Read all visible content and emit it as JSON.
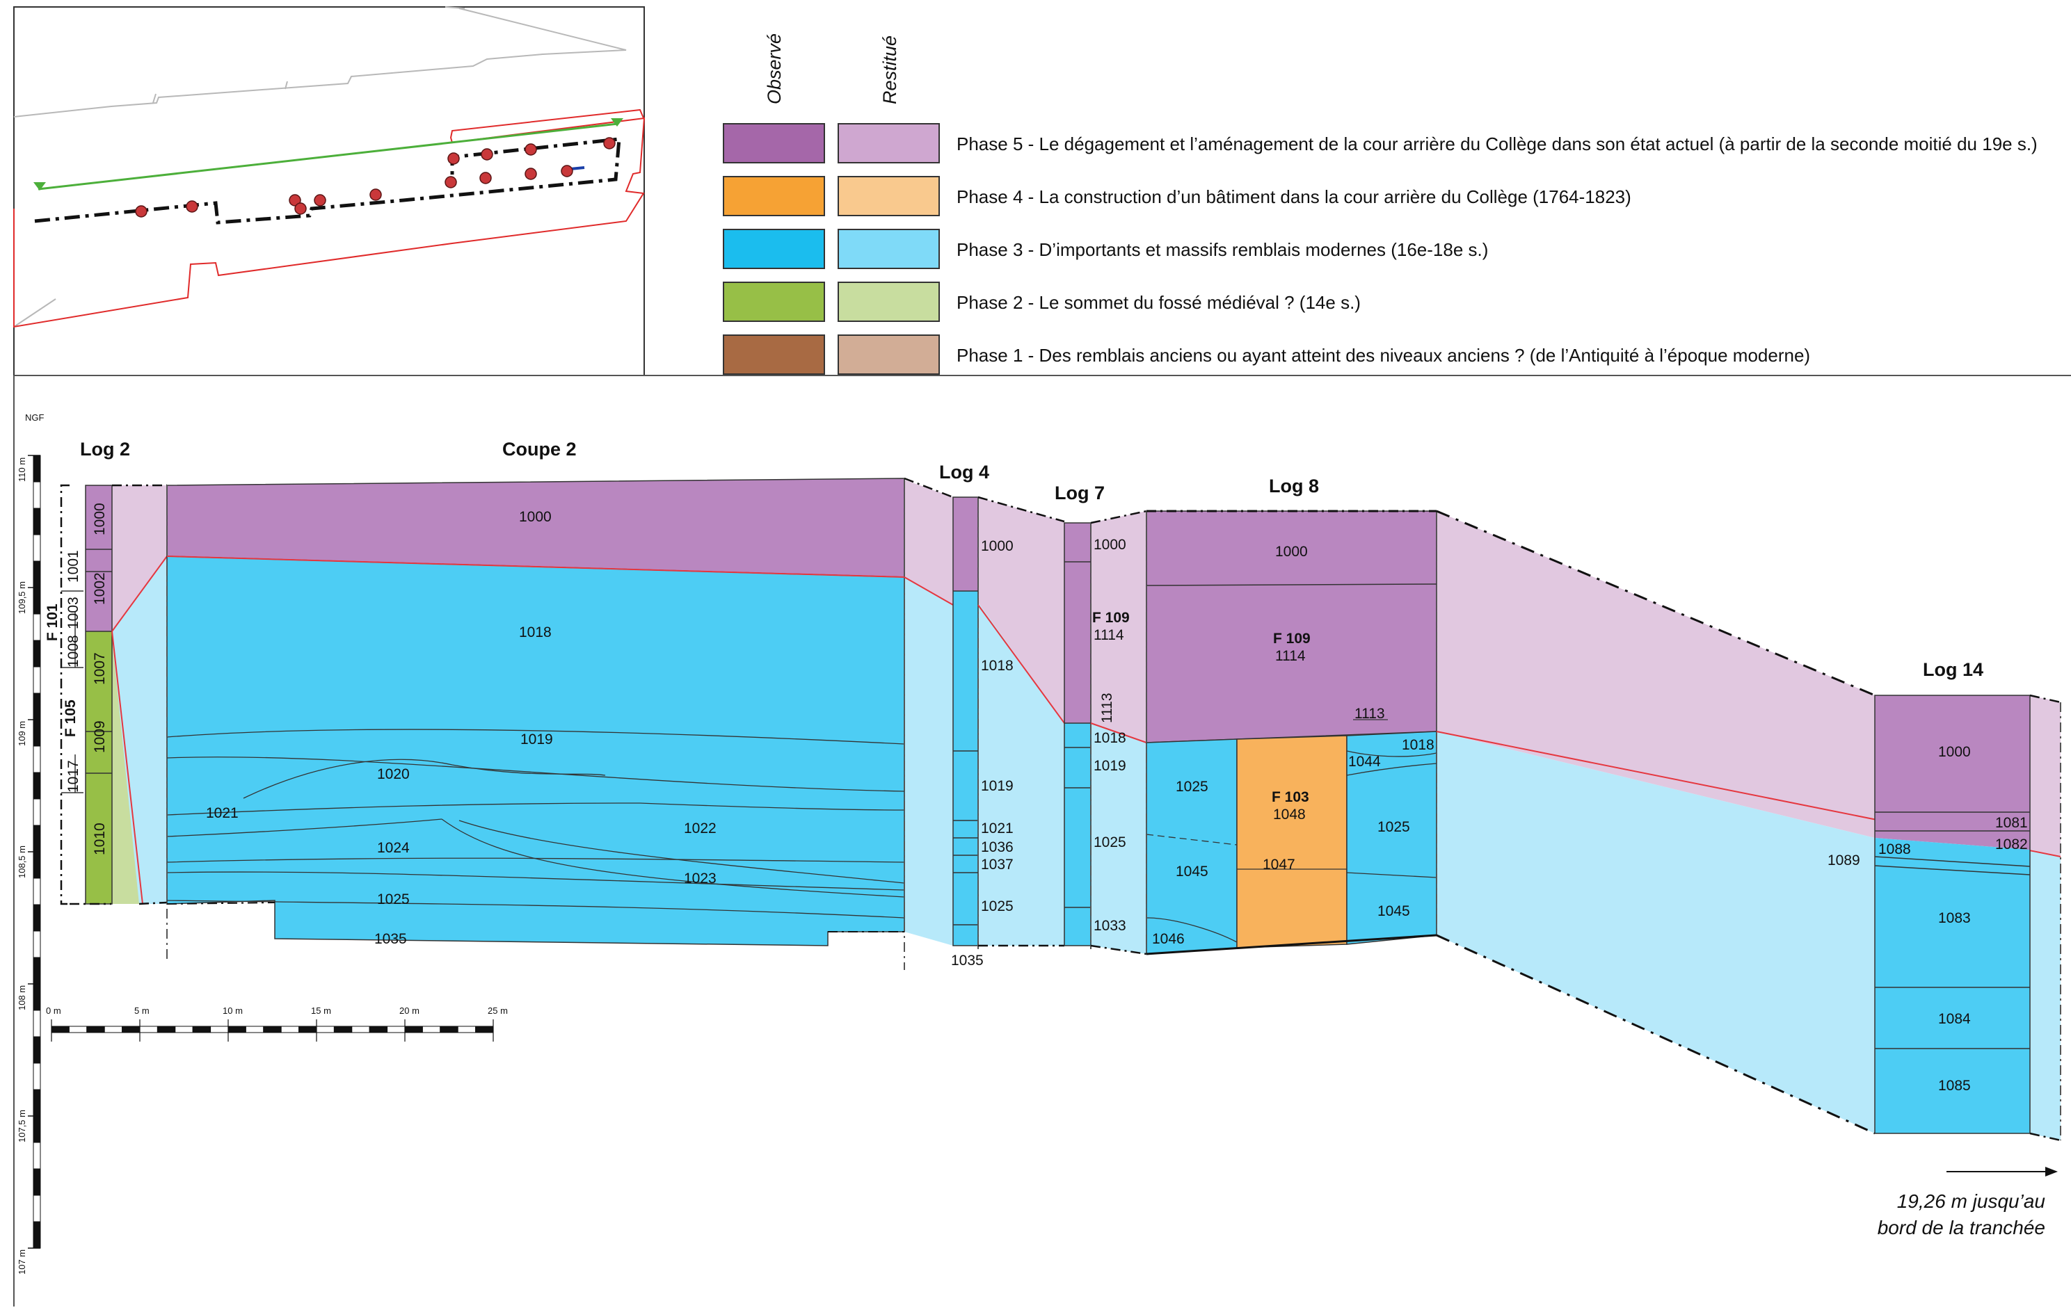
{
  "legend": {
    "header_observed": "Observé",
    "header_restored": "Restitué",
    "phases": [
      {
        "label": "Phase 5 - Le dégagement et l’aménagement de la cour arrière du Collège dans son état actuel (à partir de la seconde moitié du 19e s.)",
        "observed_color": "#a567a9",
        "restored_color": "#cfa7d0"
      },
      {
        "label": "Phase 4 - La construction d’un bâtiment dans la cour arrière du Collège (1764-1823)",
        "observed_color": "#f6a234",
        "restored_color": "#f9c98e"
      },
      {
        "label": "Phase 3 - D’importants et massifs remblais modernes (16e-18e s.)",
        "observed_color": "#1bbdee",
        "restored_color": "#7fdaf8"
      },
      {
        "label": "Phase 2 - Le sommet du fossé médiéval ? (14e s.)",
        "observed_color": "#97bf47",
        "restored_color": "#c8dd9f"
      },
      {
        "label": "Phase 1 - Des remblais anciens ou ayant atteint des niveaux anciens ? (de l’Antiquité à l’époque moderne)",
        "observed_color": "#a86a43",
        "restored_color": "#d2ad96"
      }
    ]
  },
  "sections": {
    "log2": "Log 2",
    "coupe2": "Coupe 2",
    "log4": "Log 4",
    "log7": "Log 7",
    "log8": "Log 8",
    "log14": "Log 14"
  },
  "features": {
    "f101": "F 101",
    "f105": "F 105",
    "f109": "F 109",
    "f103": "F 103"
  },
  "units": {
    "u1000": "1000",
    "u1001": "1001",
    "u1002": "1002",
    "u1003": "1003",
    "u1007": "1007",
    "u1008": "1008",
    "u1009": "1009",
    "u1010": "1010",
    "u1017": "1017",
    "u1018": "1018",
    "u1019": "1019",
    "u1020": "1020",
    "u1021": "1021",
    "u1022": "1022",
    "u1023": "1023",
    "u1024": "1024",
    "u1025": "1025",
    "u1033": "1033",
    "u1035": "1035",
    "u1036": "1036",
    "u1037": "1037",
    "u1044": "1044",
    "u1045": "1045",
    "u1046": "1046",
    "u1047": "1047",
    "u1048": "1048",
    "u1081": "1081",
    "u1082": "1082",
    "u1083": "1083",
    "u1084": "1084",
    "u1085": "1085",
    "u1088": "1088",
    "u1089": "1089",
    "u1113": "1113",
    "u1114": "1114"
  },
  "altitude_scale": {
    "unit_label": "NGF",
    "ticks": [
      "110 m",
      "109,5 m",
      "109 m",
      "108,5 m",
      "108 m",
      "107,5 m",
      "107 m"
    ]
  },
  "distance_scale": {
    "ticks": [
      "0 m",
      "5 m",
      "10 m",
      "15 m",
      "20 m",
      "25 m"
    ]
  },
  "note": {
    "line1": "19,26 m jusqu’au",
    "line2": "bord de la tranchée"
  },
  "colors": {
    "purple_obs": "#b987c0",
    "purple_res": "#e1c8e0",
    "blue_obs": "#4dcdf4",
    "blue_res": "#b7e9fa",
    "orange": "#f8b25c",
    "green_obs": "#97bf47",
    "green_res": "#c8dd9f",
    "red_line": "#e5373f",
    "map_green": "#4caf3a"
  }
}
